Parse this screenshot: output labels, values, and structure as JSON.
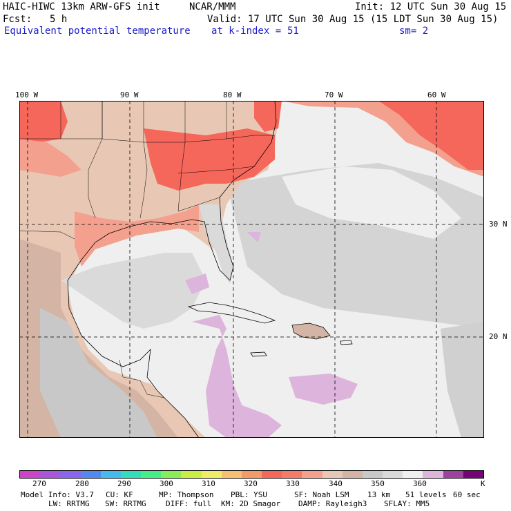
{
  "header": {
    "model": "HAIC-HIWC 13km ARW-GFS init",
    "org": "NCAR/MMM",
    "init": "Init: 12 UTC Sun 30 Aug 15",
    "fcst_label": "Fcst:",
    "fcst_value": "5 h",
    "valid": "Valid: 17 UTC Sun 30 Aug 15 (15 LDT Sun 30 Aug 15)",
    "field": "Equivalent potential temperature",
    "level": "at k-index =",
    "level_value": "51",
    "smoothing": "sm= 2"
  },
  "map": {
    "longitude_labels": [
      "100 W",
      "90 W",
      "80 W",
      "70 W",
      "60 W"
    ],
    "latitude_labels": [
      "30 N",
      "20 N"
    ],
    "fill_levels_K": [
      {
        "label": "land_cool",
        "color": "#e8c8b4"
      },
      {
        "label": "salmon",
        "color": "#f4a08e"
      },
      {
        "label": "red",
        "color": "#f4675a"
      },
      {
        "label": "tan",
        "color": "#d4b4a4"
      },
      {
        "label": "gray",
        "color": "#c8c8c8"
      },
      {
        "label": "lightgray",
        "color": "#dadada"
      },
      {
        "label": "ocean",
        "color": "#efefef"
      },
      {
        "label": "lavender",
        "color": "#dcb4dc"
      }
    ]
  },
  "colorbar": {
    "colors": [
      "#cc44cc",
      "#aa55dd",
      "#8866ee",
      "#5588ee",
      "#44bbee",
      "#33ddbb",
      "#44ee88",
      "#88ee55",
      "#ccee44",
      "#eeee66",
      "#f6c070",
      "#f49a66",
      "#f4675a",
      "#f47a6a",
      "#f4a08e",
      "#e8c8b4",
      "#d4b4a4",
      "#c8c8c8",
      "#dadada",
      "#efefef",
      "#dcb4dc",
      "#a040a0",
      "#780078"
    ],
    "tick_labels": [
      "270",
      "280",
      "290",
      "300",
      "310",
      "320",
      "330",
      "340",
      "350",
      "360"
    ],
    "unit": "K"
  },
  "footer": {
    "line1": [
      "Model Info: V3.7",
      "CU: KF",
      "MP: Thompson",
      "PBL: YSU",
      "SF: Noah LSM",
      "13 km",
      "51 levels",
      "60 sec"
    ],
    "line2": [
      "LW: RRTMG",
      "SW: RRTMG",
      "DIFF: full",
      "KM: 2D Smagor",
      "DAMP: Rayleigh3",
      "SFLAY: MM5"
    ]
  }
}
